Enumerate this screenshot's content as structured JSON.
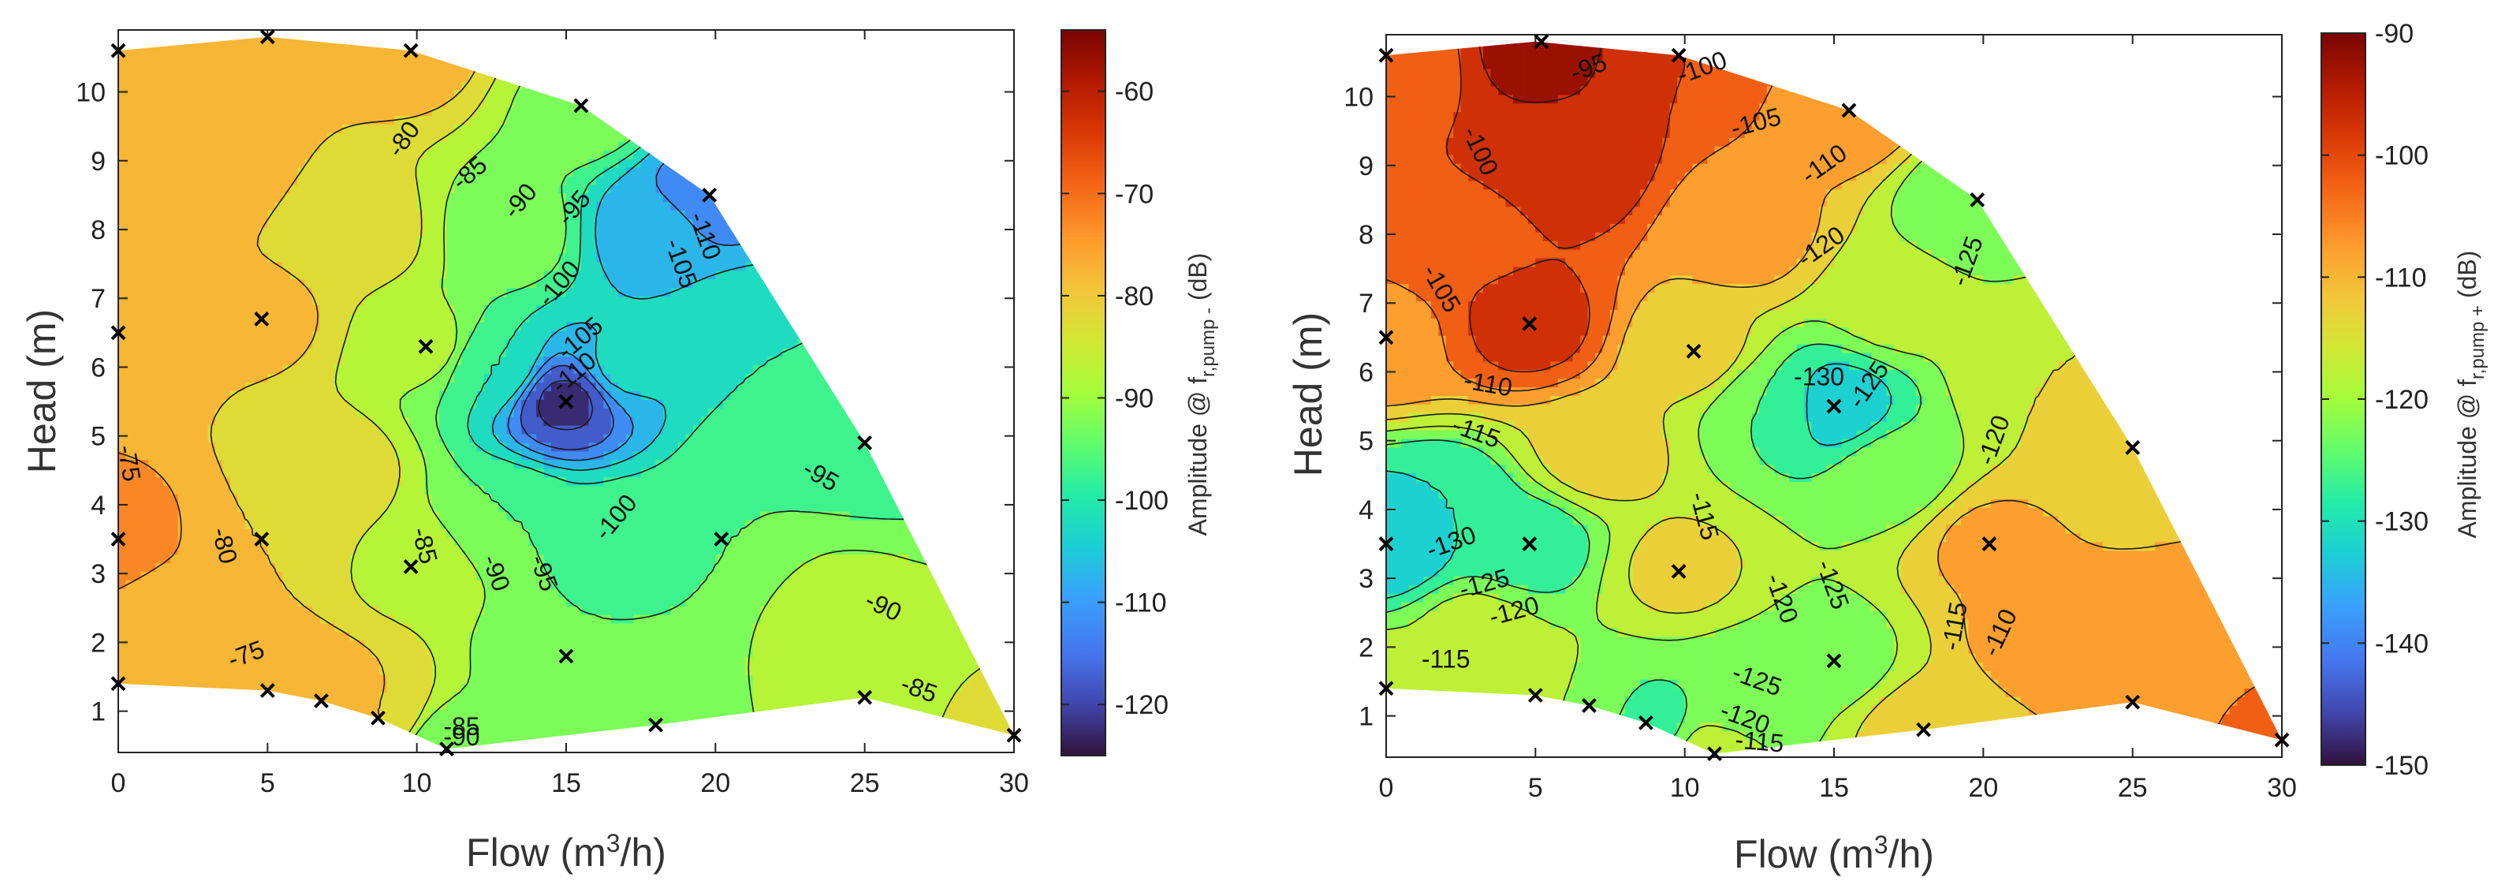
{
  "chart_data": [
    {
      "type": "contour",
      "xlabel": "Flow (m",
      "xlabel_sup": "3",
      "xlabel_tail": "/h)",
      "ylabel": "Head (m)",
      "xlim": [
        0,
        30
      ],
      "ylim": [
        0.4,
        10.9
      ],
      "xticks": [
        0,
        5,
        10,
        15,
        20,
        25,
        30
      ],
      "yticks": [
        1,
        2,
        3,
        4,
        5,
        6,
        7,
        8,
        9,
        10
      ],
      "colorbar": {
        "label": "Amplitude @ f",
        "label_sub": "r,pump -",
        "label_tail": " (dB)",
        "range": [
          -125,
          -54
        ],
        "ticks": [
          -60,
          -70,
          -80,
          -90,
          -100,
          -110,
          -120
        ]
      },
      "measurement_points": [
        {
          "x": 0,
          "y": 10.6
        },
        {
          "x": 5,
          "y": 10.8
        },
        {
          "x": 9.8,
          "y": 10.6
        },
        {
          "x": 15.5,
          "y": 9.8
        },
        {
          "x": 19.8,
          "y": 8.5
        },
        {
          "x": 0,
          "y": 6.5
        },
        {
          "x": 4.8,
          "y": 6.7
        },
        {
          "x": 10.3,
          "y": 6.3
        },
        {
          "x": 15.0,
          "y": 5.5
        },
        {
          "x": 0,
          "y": 3.5
        },
        {
          "x": 4.8,
          "y": 3.5
        },
        {
          "x": 9.8,
          "y": 3.1
        },
        {
          "x": 20.2,
          "y": 3.5
        },
        {
          "x": 25.0,
          "y": 4.9
        },
        {
          "x": 15.0,
          "y": 1.8
        },
        {
          "x": 0,
          "y": 1.4
        },
        {
          "x": 5.0,
          "y": 1.3
        },
        {
          "x": 6.8,
          "y": 1.15
        },
        {
          "x": 8.7,
          "y": 0.9
        },
        {
          "x": 11.0,
          "y": 0.45
        },
        {
          "x": 18.0,
          "y": 0.8
        },
        {
          "x": 25.0,
          "y": 1.2
        },
        {
          "x": 30.0,
          "y": 0.65
        }
      ],
      "contour_labels": [
        {
          "text": "-80",
          "x": 9.6,
          "y": 9.3,
          "angle": -55
        },
        {
          "text": "-85",
          "x": 11.8,
          "y": 8.8,
          "angle": -40
        },
        {
          "text": "-90",
          "x": 13.5,
          "y": 8.4,
          "angle": -50
        },
        {
          "text": "-95",
          "x": 15.3,
          "y": 8.3,
          "angle": -50
        },
        {
          "text": "-100",
          "x": 14.8,
          "y": 7.2,
          "angle": -50
        },
        {
          "text": "-105",
          "x": 15.5,
          "y": 6.4,
          "angle": -40
        },
        {
          "text": "-110",
          "x": 15.3,
          "y": 5.9,
          "angle": -40
        },
        {
          "text": "-110",
          "x": 19.6,
          "y": 7.9,
          "angle": 70
        },
        {
          "text": "-105",
          "x": 18.8,
          "y": 7.5,
          "angle": 70
        },
        {
          "text": "-75",
          "x": 0.3,
          "y": 4.6,
          "angle": 80
        },
        {
          "text": "-80",
          "x": 3.5,
          "y": 3.4,
          "angle": 75
        },
        {
          "text": "-85",
          "x": 10.2,
          "y": 3.4,
          "angle": 75
        },
        {
          "text": "-90",
          "x": 12.6,
          "y": 3.0,
          "angle": 70
        },
        {
          "text": "-95",
          "x": 14.2,
          "y": 3.0,
          "angle": 70
        },
        {
          "text": "-100",
          "x": 16.7,
          "y": 3.8,
          "angle": -50
        },
        {
          "text": "-95",
          "x": 23.5,
          "y": 4.4,
          "angle": 30
        },
        {
          "text": "-90",
          "x": 25.6,
          "y": 2.5,
          "angle": 25
        },
        {
          "text": "-85",
          "x": 26.8,
          "y": 1.3,
          "angle": 20
        },
        {
          "text": "-75",
          "x": 4.3,
          "y": 1.8,
          "angle": -20
        },
        {
          "text": "-85",
          "x": 11.5,
          "y": 0.75,
          "angle": 0
        },
        {
          "text": "-90",
          "x": 11.5,
          "y": 0.6,
          "angle": 0
        }
      ]
    },
    {
      "type": "contour",
      "xlabel": "Flow (m",
      "xlabel_sup": "3",
      "xlabel_tail": "/h)",
      "ylabel": "Head (m)",
      "xlim": [
        0,
        30
      ],
      "ylim": [
        0.4,
        10.9
      ],
      "xticks": [
        0,
        5,
        10,
        15,
        20,
        25,
        30
      ],
      "yticks": [
        1,
        2,
        3,
        4,
        5,
        6,
        7,
        8,
        9,
        10
      ],
      "colorbar": {
        "label": "Amplitude @ f",
        "label_sub": "r,pump +",
        "label_tail": " (dB)",
        "range": [
          -150,
          -90
        ],
        "ticks": [
          -90,
          -100,
          -110,
          -120,
          -130,
          -140,
          -150
        ]
      },
      "measurement_points": [
        {
          "x": 0,
          "y": 10.6
        },
        {
          "x": 5.2,
          "y": 10.8
        },
        {
          "x": 9.8,
          "y": 10.6
        },
        {
          "x": 15.5,
          "y": 9.8
        },
        {
          "x": 19.8,
          "y": 8.5
        },
        {
          "x": 0,
          "y": 6.5
        },
        {
          "x": 4.8,
          "y": 6.7
        },
        {
          "x": 10.3,
          "y": 6.3
        },
        {
          "x": 15.0,
          "y": 5.5
        },
        {
          "x": 0,
          "y": 3.5
        },
        {
          "x": 4.8,
          "y": 3.5
        },
        {
          "x": 9.8,
          "y": 3.1
        },
        {
          "x": 20.2,
          "y": 3.5
        },
        {
          "x": 25.0,
          "y": 4.9
        },
        {
          "x": 15.0,
          "y": 1.8
        },
        {
          "x": 0,
          "y": 1.4
        },
        {
          "x": 5.0,
          "y": 1.3
        },
        {
          "x": 6.8,
          "y": 1.15
        },
        {
          "x": 8.7,
          "y": 0.9
        },
        {
          "x": 11.0,
          "y": 0.45
        },
        {
          "x": 18.0,
          "y": 0.8
        },
        {
          "x": 25.0,
          "y": 1.2
        },
        {
          "x": 30.0,
          "y": 0.65
        }
      ],
      "contour_labels": [
        {
          "text": "-95",
          "x": 6.8,
          "y": 10.4,
          "angle": -20
        },
        {
          "text": "-100",
          "x": 10.6,
          "y": 10.4,
          "angle": -20
        },
        {
          "text": "-105",
          "x": 12.4,
          "y": 9.6,
          "angle": -15
        },
        {
          "text": "-110",
          "x": 14.7,
          "y": 9.0,
          "angle": -35
        },
        {
          "text": "-120",
          "x": 14.6,
          "y": 7.8,
          "angle": -35
        },
        {
          "text": "-125",
          "x": 19.5,
          "y": 7.6,
          "angle": -70
        },
        {
          "text": "-100",
          "x": 3.1,
          "y": 9.2,
          "angle": 65
        },
        {
          "text": "-105",
          "x": 1.8,
          "y": 7.2,
          "angle": 60
        },
        {
          "text": "-110",
          "x": 3.4,
          "y": 5.8,
          "angle": 10
        },
        {
          "text": "-115",
          "x": 3.0,
          "y": 5.1,
          "angle": 20
        },
        {
          "text": "-130",
          "x": 14.5,
          "y": 5.9,
          "angle": 0
        },
        {
          "text": "-125",
          "x": 16.2,
          "y": 5.8,
          "angle": -55
        },
        {
          "text": "-120",
          "x": 20.4,
          "y": 5.0,
          "angle": -70
        },
        {
          "text": "-115",
          "x": 10.6,
          "y": 3.9,
          "angle": 75
        },
        {
          "text": "-120",
          "x": 13.2,
          "y": 2.7,
          "angle": 70
        },
        {
          "text": "-125",
          "x": 14.9,
          "y": 2.9,
          "angle": 70
        },
        {
          "text": "-115",
          "x": 19.1,
          "y": 2.3,
          "angle": -80
        },
        {
          "text": "-110",
          "x": 20.6,
          "y": 2.2,
          "angle": -65
        },
        {
          "text": "-130",
          "x": 2.2,
          "y": 3.5,
          "angle": -20
        },
        {
          "text": "-125",
          "x": 3.3,
          "y": 2.9,
          "angle": -15
        },
        {
          "text": "-120",
          "x": 4.3,
          "y": 2.5,
          "angle": -15
        },
        {
          "text": "-115",
          "x": 2.0,
          "y": 1.8,
          "angle": 0
        },
        {
          "text": "-125",
          "x": 12.4,
          "y": 1.5,
          "angle": 20
        },
        {
          "text": "-120",
          "x": 12.0,
          "y": 0.95,
          "angle": 20
        },
        {
          "text": "-115",
          "x": 12.5,
          "y": 0.6,
          "angle": 5
        }
      ]
    }
  ]
}
